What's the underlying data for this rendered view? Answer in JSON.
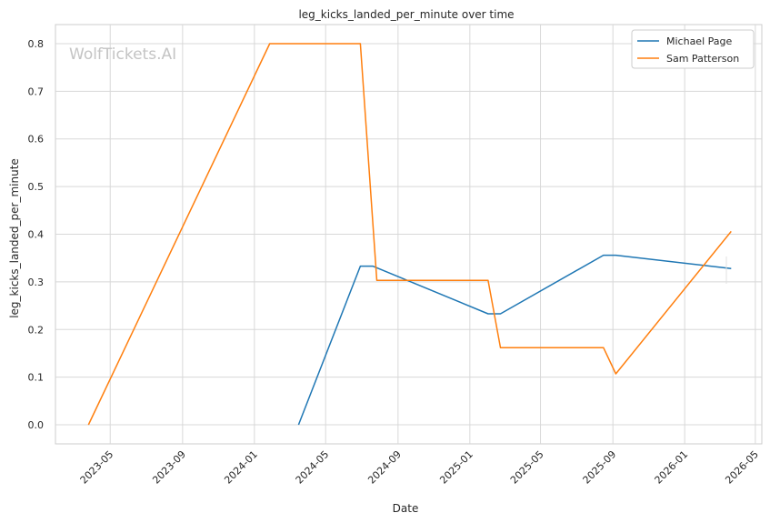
{
  "chart_data": {
    "type": "line",
    "title": "leg_kicks_landed_per_minute over time",
    "xlabel": "Date",
    "ylabel": "leg_kicks_landed_per_minute",
    "watermark": "WolfTickets.AI",
    "xlim": [
      "2023-01-28",
      "2026-05-12"
    ],
    "ylim": [
      -0.04,
      0.84
    ],
    "x_ticks": [
      "2023-05",
      "2023-09",
      "2024-01",
      "2024-05",
      "2024-09",
      "2025-01",
      "2025-05",
      "2025-09",
      "2026-01",
      "2026-05"
    ],
    "y_ticks": [
      "0.0",
      "0.1",
      "0.2",
      "0.3",
      "0.4",
      "0.5",
      "0.6",
      "0.7",
      "0.8"
    ],
    "grid": true,
    "legend_position": "top-right",
    "series": [
      {
        "name": "Michael Page",
        "color": "#1f77b4",
        "points": [
          {
            "x": "2024-03-16",
            "y": 0.0
          },
          {
            "x": "2024-06-29",
            "y": 0.333
          },
          {
            "x": "2024-07-20",
            "y": 0.333
          },
          {
            "x": "2025-02-01",
            "y": 0.233
          },
          {
            "x": "2025-02-22",
            "y": 0.233
          },
          {
            "x": "2025-08-16",
            "y": 0.356
          },
          {
            "x": "2025-09-06",
            "y": 0.356
          },
          {
            "x": "2026-03-21",
            "y": 0.328
          }
        ]
      },
      {
        "name": "Sam Patterson",
        "color": "#ff7f0e",
        "points": [
          {
            "x": "2023-03-25",
            "y": 0.0
          },
          {
            "x": "2024-01-27",
            "y": 0.8
          },
          {
            "x": "2024-06-29",
            "y": 0.8
          },
          {
            "x": "2024-07-27",
            "y": 0.303
          },
          {
            "x": "2025-02-01",
            "y": 0.303
          },
          {
            "x": "2025-02-22",
            "y": 0.162
          },
          {
            "x": "2025-08-16",
            "y": 0.162
          },
          {
            "x": "2025-09-06",
            "y": 0.107
          },
          {
            "x": "2026-03-21",
            "y": 0.406
          }
        ]
      }
    ]
  }
}
